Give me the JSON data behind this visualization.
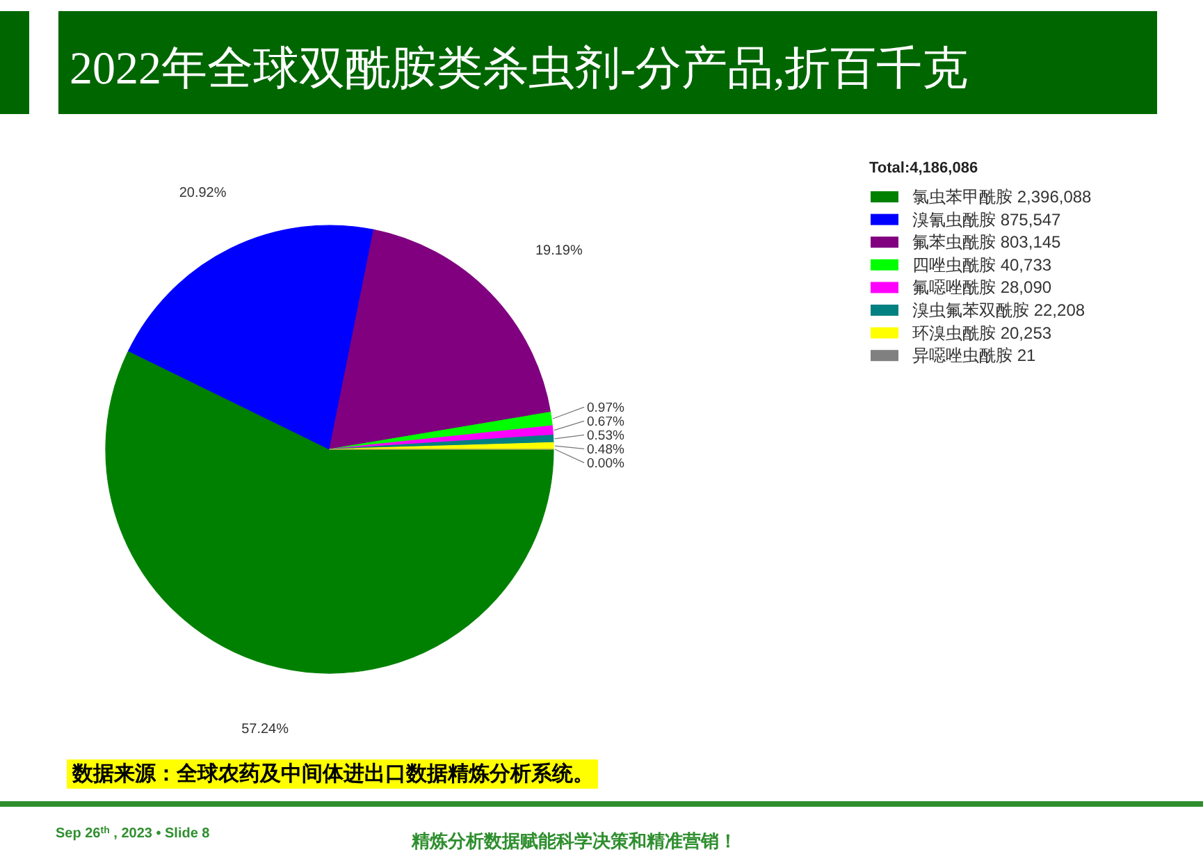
{
  "chart_data": {
    "type": "pie",
    "title": "2022年全球双酰胺类杀虫剂-分产品,折百千克",
    "categories": [
      "氯虫苯甲酰胺 2,396,088",
      "溴氰虫酰胺 875,547",
      "氟苯虫酰胺 803,145",
      "四唑虫酰胺 40,733",
      "氟噁唑酰胺 28,090",
      "溴虫氟苯双酰胺 22,208",
      "环溴虫酰胺 20,253",
      "异噁唑虫酰胺 21"
    ],
    "values": [
      57.24,
      20.92,
      19.19,
      0.97,
      0.67,
      0.53,
      0.48,
      0.0
    ],
    "colors": [
      "#008000",
      "#0000ff",
      "#800080",
      "#00ff00",
      "#ff00ff",
      "#008080",
      "#ffff00",
      "#808080"
    ],
    "value_labels": [
      "57.24%",
      "20.92%",
      "19.19%",
      "0.97%",
      "0.67%",
      "0.53%",
      "0.48%",
      "0.00%"
    ],
    "legend_title": "Total:4,186,086",
    "legend": "top right",
    "annotations": [
      "数据来源：全球农药及中间体进出口数据精炼分析系统。",
      "Sep 26$^{th}$ , 2023 • Slide 8",
      "精炼分析数据赋能科学决策和精准营销！"
    ]
  }
}
